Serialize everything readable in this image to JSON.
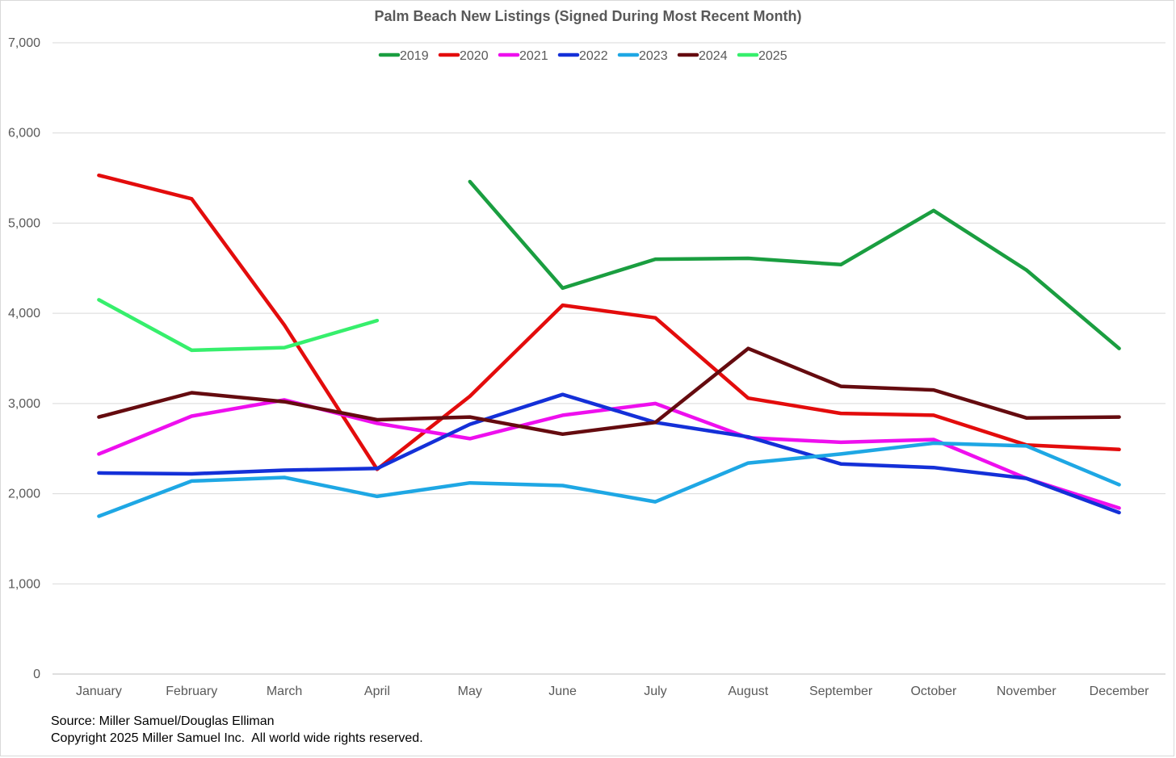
{
  "chart_data": {
    "type": "line",
    "title": "Palm Beach New Listings (Signed During Most Recent Month)",
    "xlabel": "",
    "ylabel": "",
    "ylim": [
      0,
      7000
    ],
    "yticks": [
      0,
      1000,
      2000,
      3000,
      4000,
      5000,
      6000,
      7000
    ],
    "ytick_labels": [
      "0",
      "1,000",
      "2,000",
      "3,000",
      "4,000",
      "5,000",
      "6,000",
      "7,000"
    ],
    "grid": true,
    "legend_position": "top",
    "categories": [
      "January",
      "February",
      "March",
      "April",
      "May",
      "June",
      "July",
      "August",
      "September",
      "October",
      "November",
      "December"
    ],
    "series": [
      {
        "name": "2019",
        "color": "#1a9e40",
        "values": [
          null,
          null,
          null,
          null,
          5460,
          4280,
          4600,
          4610,
          4540,
          5140,
          4480,
          3610
        ]
      },
      {
        "name": "2020",
        "color": "#e30c0c",
        "values": [
          5530,
          5270,
          3870,
          2270,
          3080,
          4090,
          3950,
          3060,
          2890,
          2870,
          2540,
          2490
        ]
      },
      {
        "name": "2021",
        "color": "#ee0fee",
        "values": [
          2440,
          2860,
          3040,
          2780,
          2610,
          2870,
          3000,
          2620,
          2570,
          2600,
          2170,
          1840
        ]
      },
      {
        "name": "2022",
        "color": "#1430d8",
        "values": [
          2230,
          2220,
          2260,
          2280,
          2770,
          3100,
          2790,
          2630,
          2330,
          2290,
          2170,
          1790
        ]
      },
      {
        "name": "2023",
        "color": "#1ea7e4",
        "values": [
          1750,
          2140,
          2180,
          1970,
          2120,
          2090,
          1910,
          2340,
          2440,
          2560,
          2530,
          2100
        ]
      },
      {
        "name": "2024",
        "color": "#650b0f",
        "values": [
          2850,
          3120,
          3020,
          2820,
          2850,
          2660,
          2790,
          3610,
          3190,
          3150,
          2840,
          2850
        ]
      },
      {
        "name": "2025",
        "color": "#36ef6c",
        "values": [
          4150,
          3590,
          3620,
          3920,
          null,
          null,
          null,
          null,
          null,
          null,
          null,
          null
        ]
      }
    ]
  },
  "footer": {
    "source": "Source: Miller Samuel/Douglas Elliman",
    "copyright": "Copyright 2025 Miller Samuel Inc.  All world wide rights reserved."
  }
}
